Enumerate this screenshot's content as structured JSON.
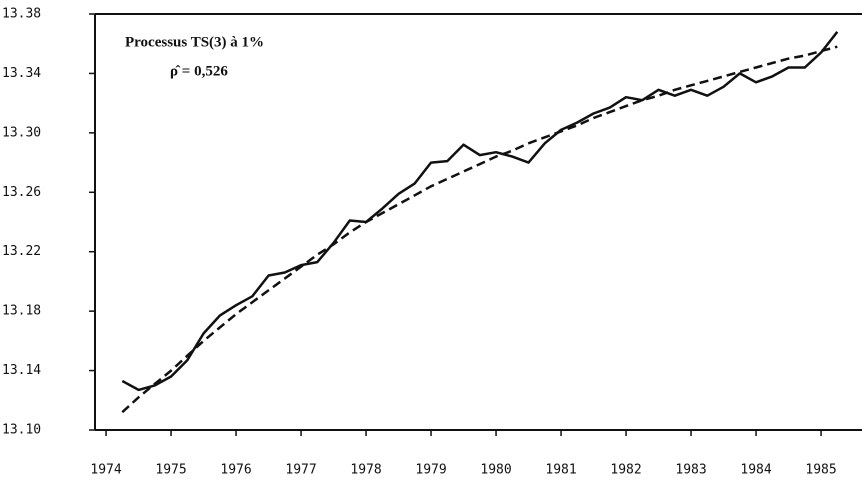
{
  "chart_data": {
    "type": "line",
    "annotations": [
      "Processus TS(3) à 1%",
      "ρ̂ = 0,526"
    ],
    "x": [
      1974.25,
      1974.5,
      1974.75,
      1975,
      1975.25,
      1975.5,
      1975.75,
      1976,
      1976.25,
      1976.5,
      1976.75,
      1977,
      1977.25,
      1977.5,
      1977.75,
      1978,
      1978.25,
      1978.5,
      1978.75,
      1979,
      1979.25,
      1979.5,
      1979.75,
      1980,
      1980.25,
      1980.5,
      1980.75,
      1981,
      1981.25,
      1981.5,
      1981.75,
      1982,
      1982.25,
      1982.5,
      1982.75,
      1983,
      1983.25,
      1983.5,
      1983.75,
      1984,
      1984.25,
      1984.5,
      1984.75,
      1985,
      1985.25
    ],
    "series": [
      {
        "color": "#111111",
        "dash": false,
        "values": [
          13.133,
          13.127,
          13.13,
          13.136,
          13.147,
          13.165,
          13.177,
          13.184,
          13.19,
          13.204,
          13.206,
          13.211,
          13.213,
          13.226,
          13.241,
          13.24,
          13.249,
          13.259,
          13.266,
          13.28,
          13.281,
          13.292,
          13.285,
          13.287,
          13.284,
          13.28,
          13.293,
          13.302,
          13.307,
          13.313,
          13.317,
          13.324,
          13.322,
          13.329,
          13.325,
          13.329,
          13.325,
          13.331,
          13.34,
          13.334,
          13.338,
          13.344,
          13.344,
          13.354,
          13.368
        ]
      },
      {
        "color": "#111111",
        "dash": true,
        "values": [
          13.112,
          13.122,
          13.131,
          13.14,
          13.15,
          13.16,
          13.169,
          13.178,
          13.186,
          13.194,
          13.202,
          13.21,
          13.218,
          13.225,
          13.233,
          13.24,
          13.246,
          13.252,
          13.258,
          13.264,
          13.269,
          13.274,
          13.279,
          13.284,
          13.288,
          13.293,
          13.297,
          13.301,
          13.305,
          13.31,
          13.314,
          13.318,
          13.322,
          13.325,
          13.329,
          13.332,
          13.335,
          13.338,
          13.341,
          13.344,
          13.347,
          13.35,
          13.352,
          13.355,
          13.358
        ]
      }
    ],
    "xlim": [
      1973.83,
      1985.63
    ],
    "xticks": [
      1974,
      1975,
      1976,
      1977,
      1978,
      1979,
      1980,
      1981,
      1982,
      1983,
      1984,
      1985
    ],
    "ylim": [
      13.1,
      13.38
    ],
    "yticks": [
      {
        "value": 13.1,
        "label": "13.10"
      },
      13.14,
      13.18,
      13.22,
      13.26,
      {
        "value": 13.3,
        "label": "13.30"
      },
      13.34,
      13.38
    ]
  }
}
